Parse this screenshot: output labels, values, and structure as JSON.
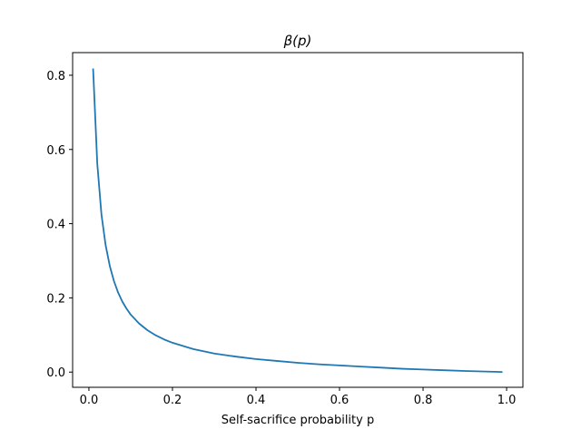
{
  "chart_data": {
    "type": "line",
    "title": "β(p)",
    "xlabel": "Self-sacrifice probability p",
    "ylabel": "",
    "xlim": [
      -0.039,
      1.039
    ],
    "ylim": [
      -0.041,
      0.861
    ],
    "grid": false,
    "legend": "none",
    "xticks": [
      0.0,
      0.2,
      0.4,
      0.6,
      0.8,
      1.0
    ],
    "xtick_labels": [
      "0.0",
      "0.2",
      "0.4",
      "0.6",
      "0.8",
      "1.0"
    ],
    "yticks": [
      0.0,
      0.2,
      0.4,
      0.6,
      0.8
    ],
    "ytick_labels": [
      "0.0",
      "0.2",
      "0.4",
      "0.6",
      "0.8"
    ],
    "series": [
      {
        "color": "#1f77b4",
        "x": [
          0.01,
          0.02,
          0.03,
          0.04,
          0.05,
          0.06,
          0.07,
          0.08,
          0.09,
          0.1,
          0.12,
          0.14,
          0.16,
          0.18,
          0.2,
          0.25,
          0.3,
          0.35,
          0.4,
          0.45,
          0.5,
          0.55,
          0.6,
          0.65,
          0.7,
          0.75,
          0.8,
          0.85,
          0.9,
          0.95,
          0.99
        ],
        "y": [
          0.818,
          0.562,
          0.425,
          0.342,
          0.286,
          0.245,
          0.214,
          0.19,
          0.171,
          0.155,
          0.131,
          0.113,
          0.099,
          0.088,
          0.079,
          0.062,
          0.05,
          0.042,
          0.035,
          0.03,
          0.025,
          0.021,
          0.018,
          0.015,
          0.012,
          0.009,
          0.007,
          0.005,
          0.003,
          0.0015,
          0.0003
        ]
      }
    ]
  }
}
